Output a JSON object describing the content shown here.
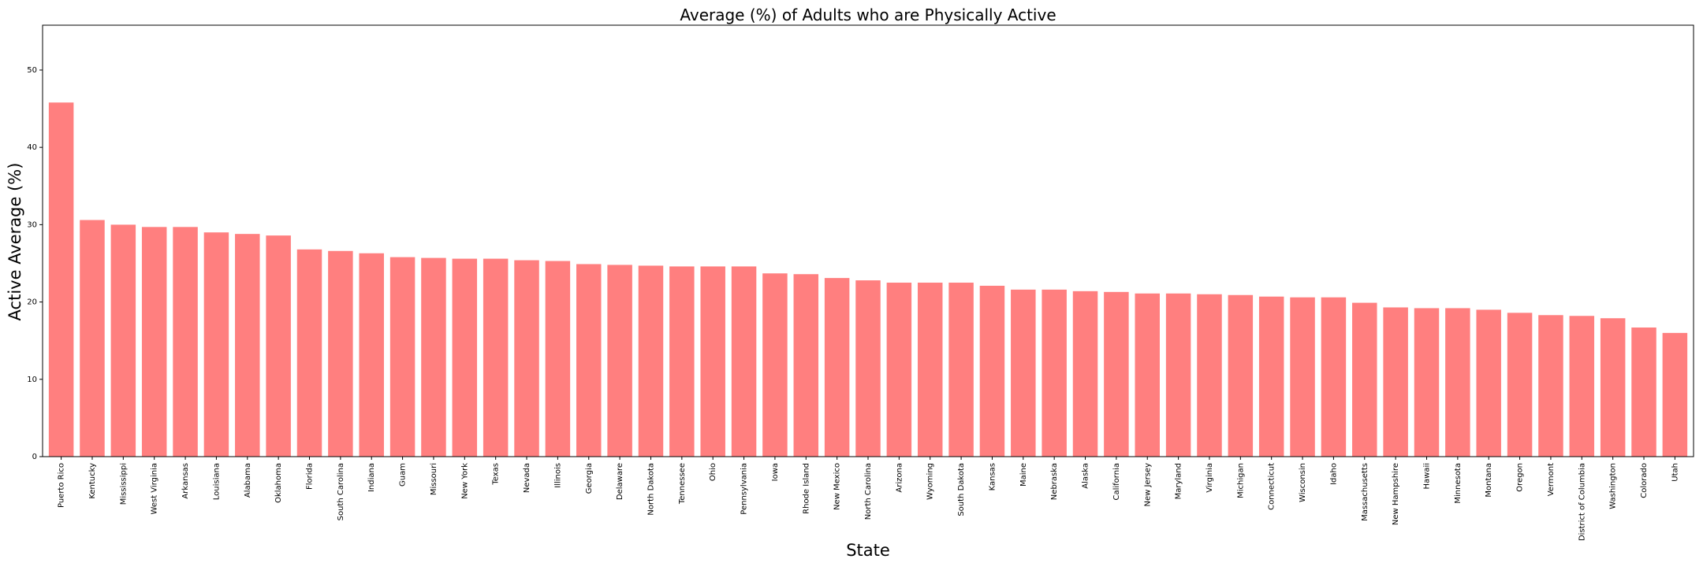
{
  "chart_data": {
    "type": "bar",
    "title": "Average (%) of Adults who are Physically Active",
    "xlabel": "State",
    "ylabel": "Active Average (%)",
    "ylim": [
      0,
      55.8
    ],
    "yticks": [
      0,
      10,
      20,
      30,
      40,
      50
    ],
    "grid": false,
    "bar_color": "#ff7f7f",
    "categories": [
      "Puerto Rico",
      "Kentucky",
      "Mississippi",
      "West Virginia",
      "Arkansas",
      "Louisiana",
      "Alabama",
      "Oklahoma",
      "Florida",
      "South Carolina",
      "Indiana",
      "Guam",
      "Missouri",
      "New York",
      "Texas",
      "Nevada",
      "Illinois",
      "Georgia",
      "Delaware",
      "North Dakota",
      "Tennessee",
      "Ohio",
      "Pennsylvania",
      "Iowa",
      "Rhode Island",
      "New Mexico",
      "North Carolina",
      "Arizona",
      "Wyoming",
      "South Dakota",
      "Kansas",
      "Maine",
      "Nebraska",
      "Alaska",
      "California",
      "New Jersey",
      "Maryland",
      "Virginia",
      "Michigan",
      "Connecticut",
      "Wisconsin",
      "Idaho",
      "Massachusetts",
      "New Hampshire",
      "Hawaii",
      "Minnesota",
      "Montana",
      "Oregon",
      "Vermont",
      "District of Columbia",
      "Washington",
      "Colorado",
      "Utah"
    ],
    "values": [
      45.8,
      30.6,
      30.0,
      29.7,
      29.7,
      29.0,
      28.8,
      28.6,
      26.8,
      26.6,
      26.3,
      25.8,
      25.7,
      25.6,
      25.6,
      25.4,
      25.3,
      24.9,
      24.8,
      24.7,
      24.6,
      24.6,
      24.6,
      23.7,
      23.6,
      23.1,
      22.8,
      22.5,
      22.5,
      22.5,
      22.1,
      21.6,
      21.6,
      21.4,
      21.3,
      21.1,
      21.1,
      21.0,
      20.9,
      20.7,
      20.6,
      20.6,
      19.9,
      19.3,
      19.2,
      19.2,
      19.0,
      18.6,
      18.3,
      18.2,
      17.9,
      16.7,
      16.0
    ]
  }
}
